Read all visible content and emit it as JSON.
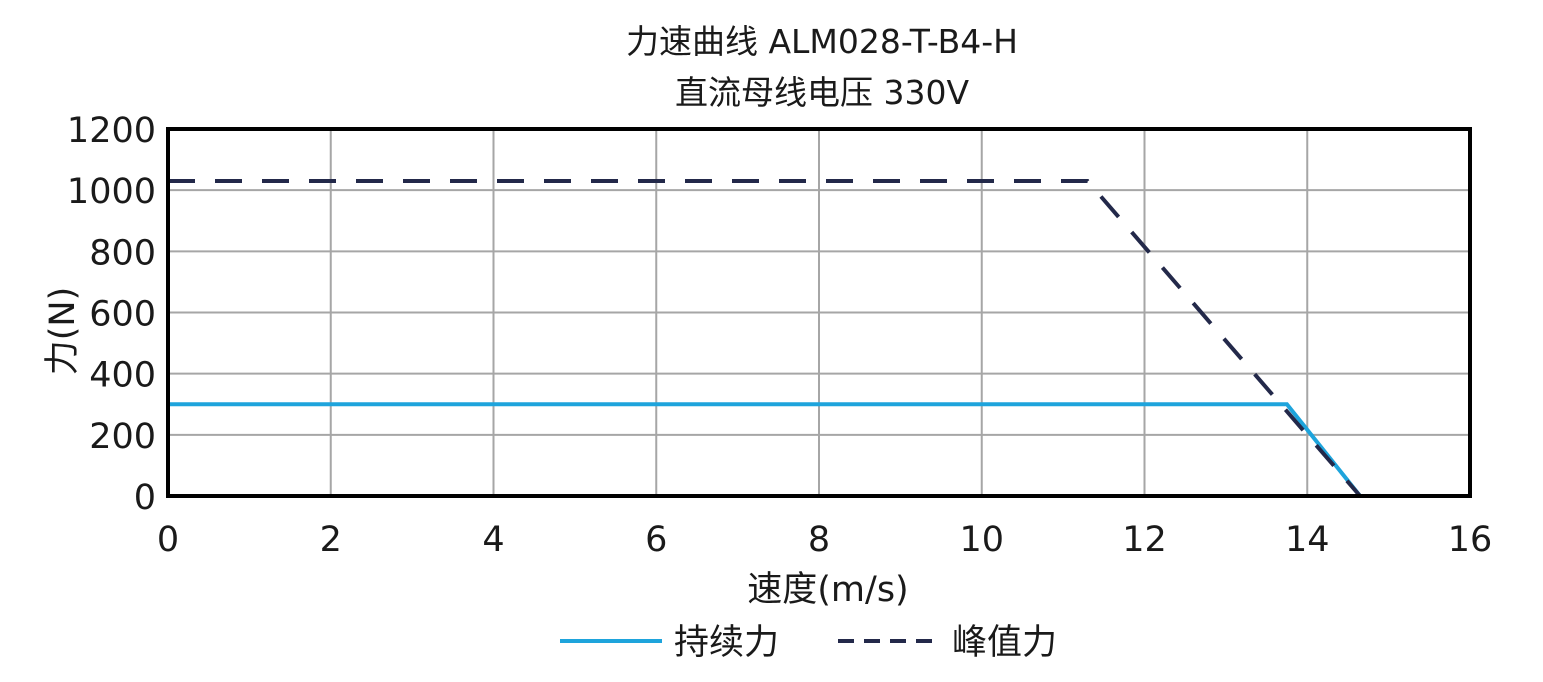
{
  "chart_data": {
    "type": "line",
    "title": "力速曲线 ALM028-T-B4-H",
    "subtitle": "直流母线电压 330V",
    "xlabel": "速度(m/s)",
    "ylabel": "力(N)",
    "xlim": [
      0,
      16
    ],
    "ylim": [
      0,
      1200
    ],
    "x_ticks": [
      "0",
      "2",
      "4",
      "6",
      "8",
      "10",
      "12",
      "14",
      "16"
    ],
    "y_ticks": [
      "0",
      "200",
      "400",
      "600",
      "800",
      "1000",
      "1200"
    ],
    "grid": true,
    "legend_position": "bottom",
    "series": [
      {
        "name": "持续力",
        "color": "#1ea4dc",
        "style": "solid",
        "x": [
          0,
          13.75,
          14.65
        ],
        "y": [
          300,
          300,
          0
        ]
      },
      {
        "name": "峰值力",
        "color": "#23294a",
        "style": "dashed",
        "x": [
          0,
          11.3,
          14.65
        ],
        "y": [
          1030,
          1030,
          0
        ]
      }
    ]
  }
}
